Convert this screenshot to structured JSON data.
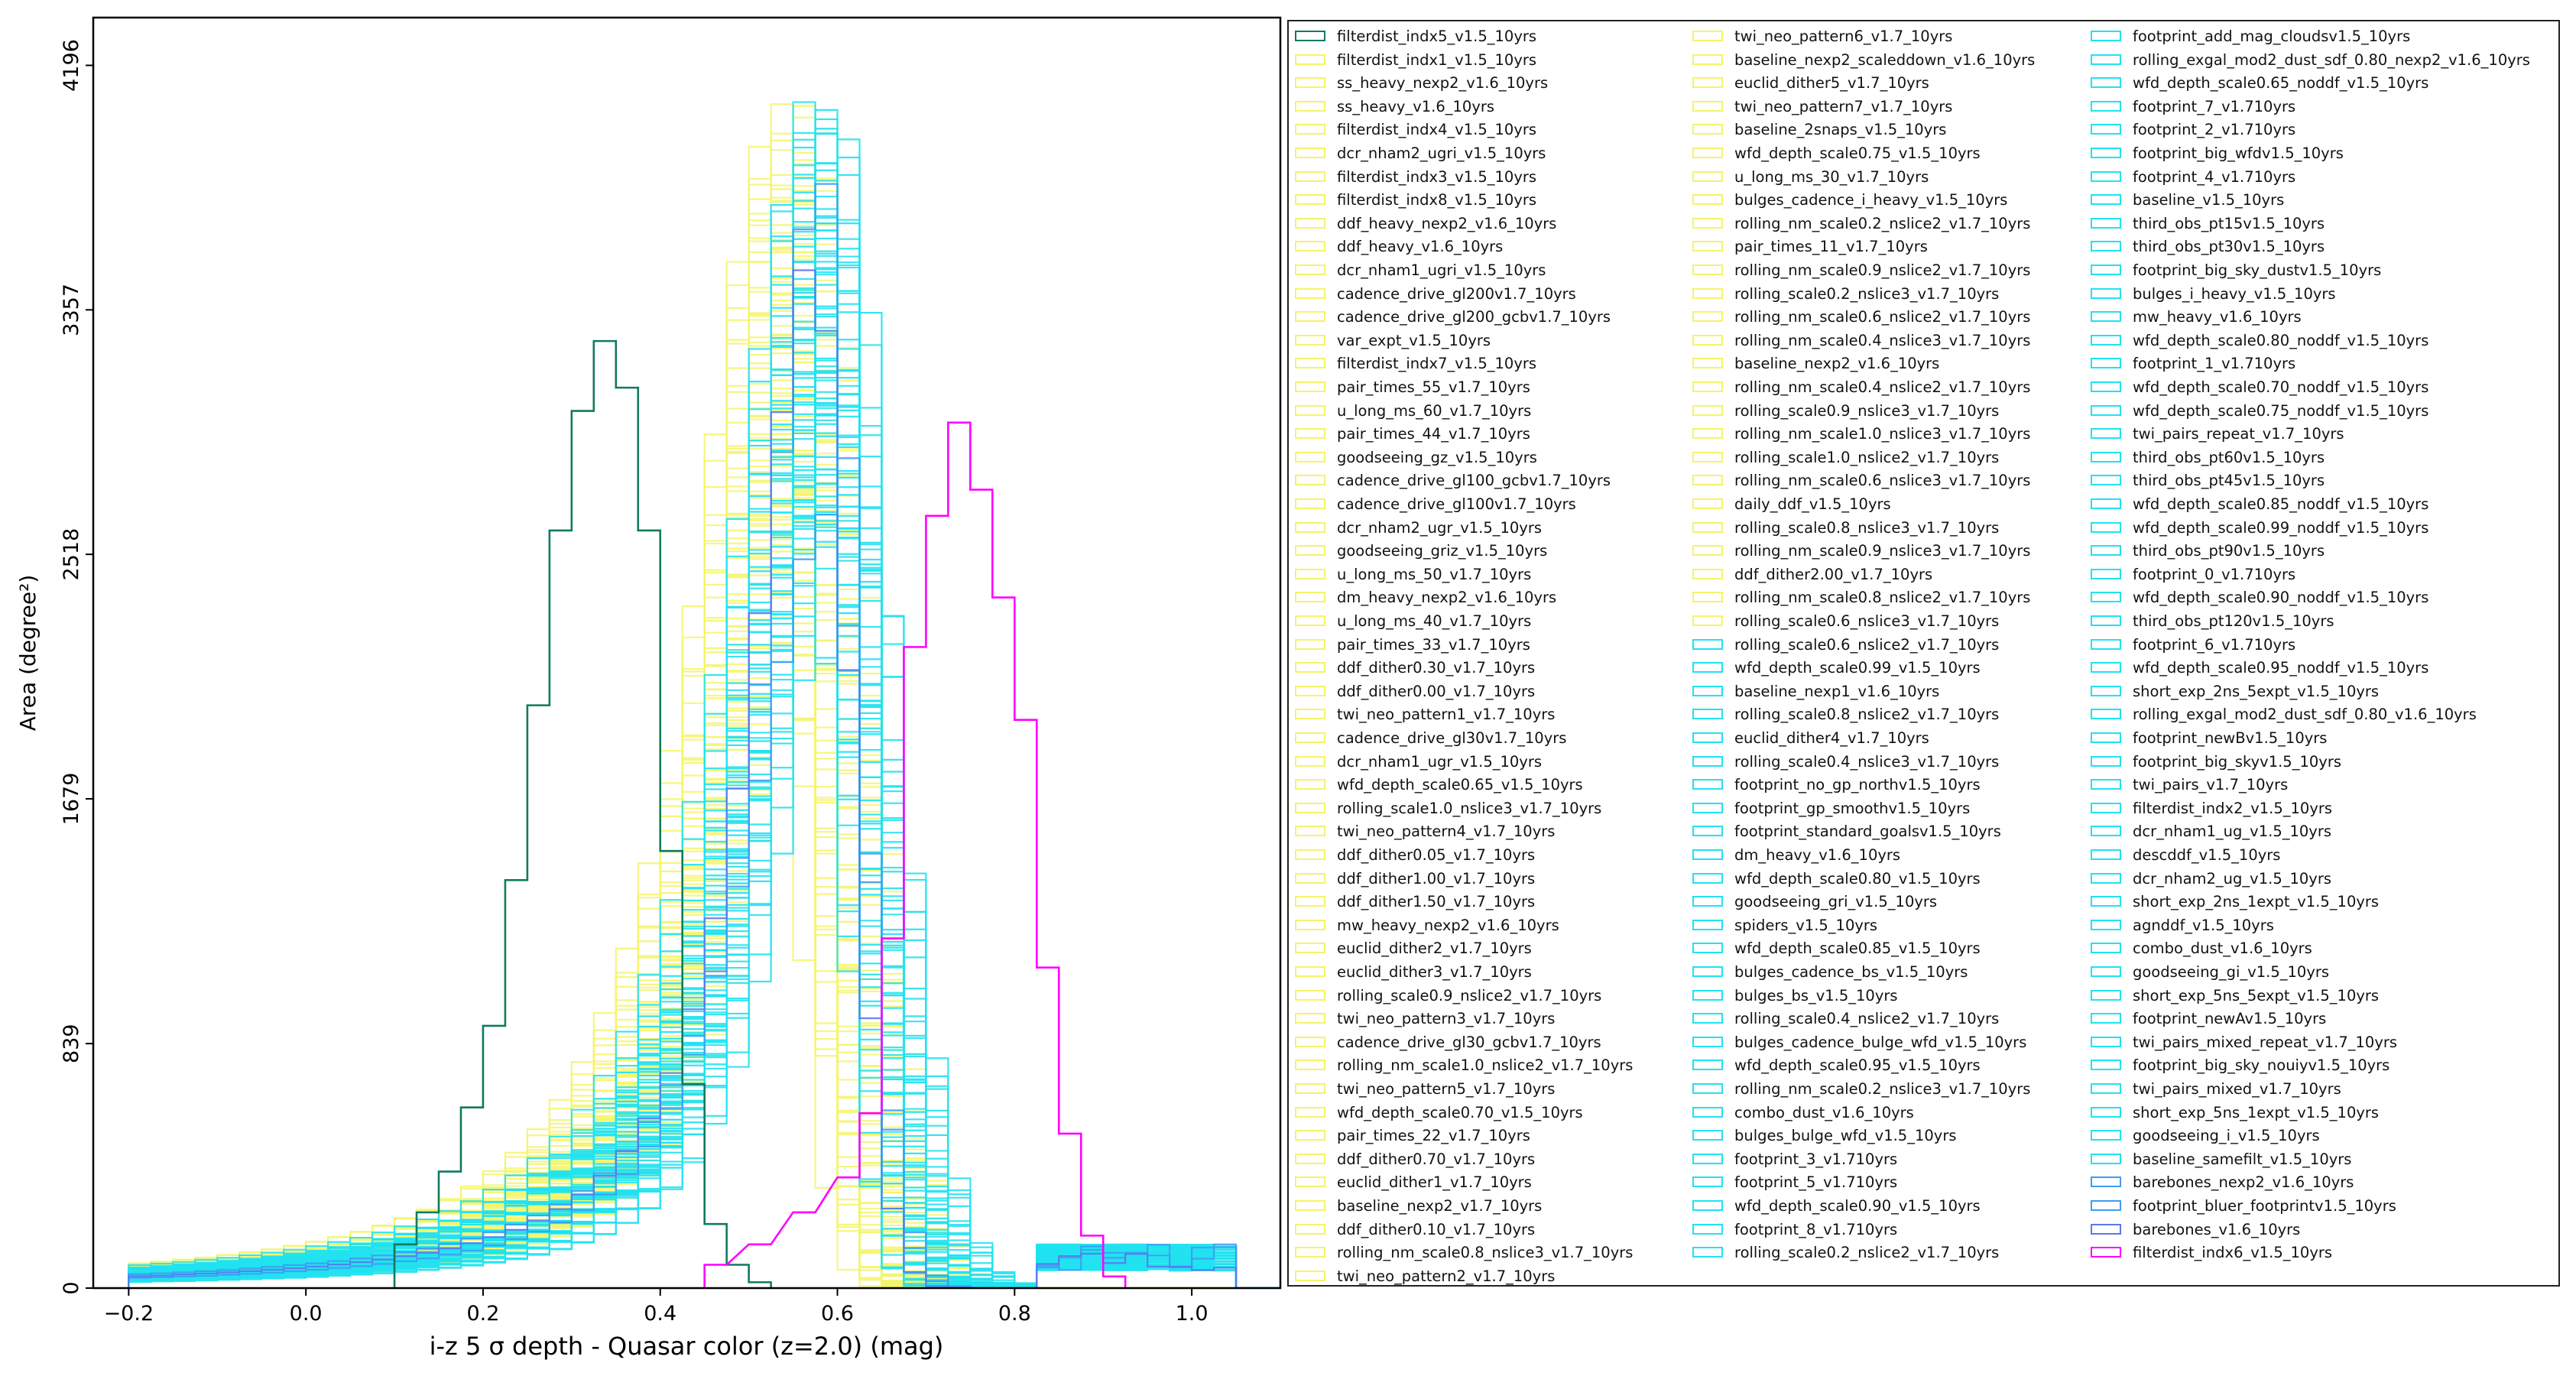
{
  "chart_data": {
    "type": "histogram",
    "xlabel": "i-z 5 σ depth - Quasar color (z=2.0) (mag)",
    "ylabel": "Area (degree²)",
    "xlim": [
      -0.24,
      1.1
    ],
    "ylim": [
      0,
      4360
    ],
    "xticks": [
      -0.2,
      0.0,
      0.2,
      0.4,
      0.6,
      0.8,
      1.0
    ],
    "xtick_labels": [
      "−0.2",
      "0.0",
      "0.2",
      "0.4",
      "0.6",
      "0.8",
      "1.0"
    ],
    "yticks": [
      0,
      839,
      1679,
      2518,
      3357,
      4196
    ],
    "ytick_labels": [
      "0",
      "839",
      "1679",
      "2518",
      "3357",
      "4196"
    ],
    "grid": false,
    "legend_placement": "outside-right",
    "highlighted_series": [
      {
        "name": "filterdist_indx5_v1.5_10yrs",
        "color": "#117a60",
        "x": [
          0.1,
          0.125,
          0.15,
          0.175,
          0.2,
          0.225,
          0.25,
          0.275,
          0.3,
          0.325,
          0.35,
          0.375,
          0.4,
          0.425,
          0.45,
          0.475,
          0.5
        ],
        "y": [
          150,
          260,
          400,
          620,
          900,
          1400,
          2000,
          2600,
          3010,
          3250,
          3090,
          2600,
          1500,
          700,
          220,
          80,
          20
        ]
      },
      {
        "name": "filterdist_indx6_v1.5_10yrs",
        "color": "#ff00ff",
        "x": [
          0.45,
          0.5,
          0.55,
          0.6,
          0.625,
          0.65,
          0.675,
          0.7,
          0.725,
          0.75,
          0.775,
          0.8,
          0.825,
          0.85,
          0.875,
          0.9
        ],
        "y": [
          80,
          150,
          260,
          380,
          600,
          1200,
          2200,
          2650,
          2970,
          2740,
          2370,
          1950,
          1100,
          530,
          180,
          40
        ]
      }
    ],
    "legend": {
      "columns": [
        [
          {
            "label": "filterdist_indx5_v1.5_10yrs",
            "color": "#117a60"
          },
          {
            "label": "filterdist_indx1_v1.5_10yrs",
            "color": "#f4f46a"
          },
          {
            "label": "ss_heavy_nexp2_v1.6_10yrs",
            "color": "#f4f46a"
          },
          {
            "label": "ss_heavy_v1.6_10yrs",
            "color": "#f4f46a"
          },
          {
            "label": "filterdist_indx4_v1.5_10yrs",
            "color": "#f4f46a"
          },
          {
            "label": "dcr_nham2_ugri_v1.5_10yrs",
            "color": "#f4f46a"
          },
          {
            "label": "filterdist_indx3_v1.5_10yrs",
            "color": "#f4f46a"
          },
          {
            "label": "filterdist_indx8_v1.5_10yrs",
            "color": "#f4f46a"
          },
          {
            "label": "ddf_heavy_nexp2_v1.6_10yrs",
            "color": "#f4f46a"
          },
          {
            "label": "ddf_heavy_v1.6_10yrs",
            "color": "#f4f46a"
          },
          {
            "label": "dcr_nham1_ugri_v1.5_10yrs",
            "color": "#f4f46a"
          },
          {
            "label": "cadence_drive_gl200v1.7_10yrs",
            "color": "#f4f46a"
          },
          {
            "label": "cadence_drive_gl200_gcbv1.7_10yrs",
            "color": "#f4f46a"
          },
          {
            "label": "var_expt_v1.5_10yrs",
            "color": "#f4f46a"
          },
          {
            "label": "filterdist_indx7_v1.5_10yrs",
            "color": "#f4f46a"
          },
          {
            "label": "pair_times_55_v1.7_10yrs",
            "color": "#f4f46a"
          },
          {
            "label": "u_long_ms_60_v1.7_10yrs",
            "color": "#f4f46a"
          },
          {
            "label": "pair_times_44_v1.7_10yrs",
            "color": "#f4f46a"
          },
          {
            "label": "goodseeing_gz_v1.5_10yrs",
            "color": "#f4f46a"
          },
          {
            "label": "cadence_drive_gl100_gcbv1.7_10yrs",
            "color": "#f4f46a"
          },
          {
            "label": "cadence_drive_gl100v1.7_10yrs",
            "color": "#f4f46a"
          },
          {
            "label": "dcr_nham2_ugr_v1.5_10yrs",
            "color": "#f4f46a"
          },
          {
            "label": "goodseeing_griz_v1.5_10yrs",
            "color": "#f4f46a"
          },
          {
            "label": "u_long_ms_50_v1.7_10yrs",
            "color": "#f4f46a"
          },
          {
            "label": "dm_heavy_nexp2_v1.6_10yrs",
            "color": "#f4f46a"
          },
          {
            "label": "u_long_ms_40_v1.7_10yrs",
            "color": "#f4f46a"
          },
          {
            "label": "pair_times_33_v1.7_10yrs",
            "color": "#f4f46a"
          },
          {
            "label": "ddf_dither0.30_v1.7_10yrs",
            "color": "#f4f46a"
          },
          {
            "label": "ddf_dither0.00_v1.7_10yrs",
            "color": "#f4f46a"
          },
          {
            "label": "twi_neo_pattern1_v1.7_10yrs",
            "color": "#f4f46a"
          },
          {
            "label": "cadence_drive_gl30v1.7_10yrs",
            "color": "#f4f46a"
          },
          {
            "label": "dcr_nham1_ugr_v1.5_10yrs",
            "color": "#f4f46a"
          },
          {
            "label": "wfd_depth_scale0.65_v1.5_10yrs",
            "color": "#f4f46a"
          },
          {
            "label": "rolling_scale1.0_nslice3_v1.7_10yrs",
            "color": "#f4f46a"
          },
          {
            "label": "twi_neo_pattern4_v1.7_10yrs",
            "color": "#f4f46a"
          },
          {
            "label": "ddf_dither0.05_v1.7_10yrs",
            "color": "#f4f46a"
          },
          {
            "label": "ddf_dither1.00_v1.7_10yrs",
            "color": "#f4f46a"
          },
          {
            "label": "ddf_dither1.50_v1.7_10yrs",
            "color": "#f4f46a"
          },
          {
            "label": "mw_heavy_nexp2_v1.6_10yrs",
            "color": "#f4f46a"
          },
          {
            "label": "euclid_dither2_v1.7_10yrs",
            "color": "#f4f46a"
          },
          {
            "label": "euclid_dither3_v1.7_10yrs",
            "color": "#f4f46a"
          },
          {
            "label": "rolling_scale0.9_nslice2_v1.7_10yrs",
            "color": "#f4f46a"
          },
          {
            "label": "twi_neo_pattern3_v1.7_10yrs",
            "color": "#f4f46a"
          },
          {
            "label": "cadence_drive_gl30_gcbv1.7_10yrs",
            "color": "#f4f46a"
          },
          {
            "label": "rolling_nm_scale1.0_nslice2_v1.7_10yrs",
            "color": "#f4f46a"
          },
          {
            "label": "twi_neo_pattern5_v1.7_10yrs",
            "color": "#f4f46a"
          },
          {
            "label": "wfd_depth_scale0.70_v1.5_10yrs",
            "color": "#f4f46a"
          },
          {
            "label": "pair_times_22_v1.7_10yrs",
            "color": "#f4f46a"
          },
          {
            "label": "ddf_dither0.70_v1.7_10yrs",
            "color": "#f4f46a"
          },
          {
            "label": "euclid_dither1_v1.7_10yrs",
            "color": "#f4f46a"
          },
          {
            "label": "baseline_nexp2_v1.7_10yrs",
            "color": "#f4f46a"
          },
          {
            "label": "ddf_dither0.10_v1.7_10yrs",
            "color": "#f4f46a"
          },
          {
            "label": "rolling_nm_scale0.8_nslice3_v1.7_10yrs",
            "color": "#f4f46a"
          },
          {
            "label": "twi_neo_pattern2_v1.7_10yrs",
            "color": "#f4f46a"
          }
        ],
        [
          {
            "label": "twi_neo_pattern6_v1.7_10yrs",
            "color": "#f4f46a"
          },
          {
            "label": "baseline_nexp2_scaleddown_v1.6_10yrs",
            "color": "#f4f46a"
          },
          {
            "label": "euclid_dither5_v1.7_10yrs",
            "color": "#f4f46a"
          },
          {
            "label": "twi_neo_pattern7_v1.7_10yrs",
            "color": "#f4f46a"
          },
          {
            "label": "baseline_2snaps_v1.5_10yrs",
            "color": "#f4f46a"
          },
          {
            "label": "wfd_depth_scale0.75_v1.5_10yrs",
            "color": "#f4f46a"
          },
          {
            "label": "u_long_ms_30_v1.7_10yrs",
            "color": "#f4f46a"
          },
          {
            "label": "bulges_cadence_i_heavy_v1.5_10yrs",
            "color": "#f4f46a"
          },
          {
            "label": "rolling_nm_scale0.2_nslice2_v1.7_10yrs",
            "color": "#f4f46a"
          },
          {
            "label": "pair_times_11_v1.7_10yrs",
            "color": "#f4f46a"
          },
          {
            "label": "rolling_nm_scale0.9_nslice2_v1.7_10yrs",
            "color": "#f4f46a"
          },
          {
            "label": "rolling_scale0.2_nslice3_v1.7_10yrs",
            "color": "#f4f46a"
          },
          {
            "label": "rolling_nm_scale0.6_nslice2_v1.7_10yrs",
            "color": "#f4f46a"
          },
          {
            "label": "rolling_nm_scale0.4_nslice3_v1.7_10yrs",
            "color": "#f4f46a"
          },
          {
            "label": "baseline_nexp2_v1.6_10yrs",
            "color": "#f4f46a"
          },
          {
            "label": "rolling_nm_scale0.4_nslice2_v1.7_10yrs",
            "color": "#f4f46a"
          },
          {
            "label": "rolling_scale0.9_nslice3_v1.7_10yrs",
            "color": "#f4f46a"
          },
          {
            "label": "rolling_nm_scale1.0_nslice3_v1.7_10yrs",
            "color": "#f4f46a"
          },
          {
            "label": "rolling_scale1.0_nslice2_v1.7_10yrs",
            "color": "#f4f46a"
          },
          {
            "label": "rolling_nm_scale0.6_nslice3_v1.7_10yrs",
            "color": "#f4f46a"
          },
          {
            "label": "daily_ddf_v1.5_10yrs",
            "color": "#f4f46a"
          },
          {
            "label": "rolling_scale0.8_nslice3_v1.7_10yrs",
            "color": "#f4f46a"
          },
          {
            "label": "rolling_nm_scale0.9_nslice3_v1.7_10yrs",
            "color": "#f4f46a"
          },
          {
            "label": "ddf_dither2.00_v1.7_10yrs",
            "color": "#f4f46a"
          },
          {
            "label": "rolling_nm_scale0.8_nslice2_v1.7_10yrs",
            "color": "#f4f46a"
          },
          {
            "label": "rolling_scale0.6_nslice3_v1.7_10yrs",
            "color": "#f4f46a"
          },
          {
            "label": "rolling_scale0.6_nslice2_v1.7_10yrs",
            "color": "#21e2f0"
          },
          {
            "label": "wfd_depth_scale0.99_v1.5_10yrs",
            "color": "#21e2f0"
          },
          {
            "label": "baseline_nexp1_v1.6_10yrs",
            "color": "#21e2f0"
          },
          {
            "label": "rolling_scale0.8_nslice2_v1.7_10yrs",
            "color": "#21e2f0"
          },
          {
            "label": "euclid_dither4_v1.7_10yrs",
            "color": "#21e2f0"
          },
          {
            "label": "rolling_scale0.4_nslice3_v1.7_10yrs",
            "color": "#21e2f0"
          },
          {
            "label": "footprint_no_gp_northv1.5_10yrs",
            "color": "#21e2f0"
          },
          {
            "label": "footprint_gp_smoothv1.5_10yrs",
            "color": "#21e2f0"
          },
          {
            "label": "footprint_standard_goalsv1.5_10yrs",
            "color": "#21e2f0"
          },
          {
            "label": "dm_heavy_v1.6_10yrs",
            "color": "#21e2f0"
          },
          {
            "label": "wfd_depth_scale0.80_v1.5_10yrs",
            "color": "#21e2f0"
          },
          {
            "label": "goodseeing_gri_v1.5_10yrs",
            "color": "#21e2f0"
          },
          {
            "label": "spiders_v1.5_10yrs",
            "color": "#21e2f0"
          },
          {
            "label": "wfd_depth_scale0.85_v1.5_10yrs",
            "color": "#21e2f0"
          },
          {
            "label": "bulges_cadence_bs_v1.5_10yrs",
            "color": "#21e2f0"
          },
          {
            "label": "bulges_bs_v1.5_10yrs",
            "color": "#21e2f0"
          },
          {
            "label": "rolling_scale0.4_nslice2_v1.7_10yrs",
            "color": "#21e2f0"
          },
          {
            "label": "bulges_cadence_bulge_wfd_v1.5_10yrs",
            "color": "#21e2f0"
          },
          {
            "label": "wfd_depth_scale0.95_v1.5_10yrs",
            "color": "#21e2f0"
          },
          {
            "label": "rolling_nm_scale0.2_nslice3_v1.7_10yrs",
            "color": "#21e2f0"
          },
          {
            "label": "combo_dust_v1.6_10yrs",
            "color": "#21e2f0"
          },
          {
            "label": "bulges_bulge_wfd_v1.5_10yrs",
            "color": "#21e2f0"
          },
          {
            "label": "footprint_3_v1.710yrs",
            "color": "#21e2f0"
          },
          {
            "label": "footprint_5_v1.710yrs",
            "color": "#21e2f0"
          },
          {
            "label": "wfd_depth_scale0.90_v1.5_10yrs",
            "color": "#21e2f0"
          },
          {
            "label": "footprint_8_v1.710yrs",
            "color": "#21e2f0"
          },
          {
            "label": "rolling_scale0.2_nslice2_v1.7_10yrs",
            "color": "#21e2f0"
          }
        ],
        [
          {
            "label": "footprint_add_mag_cloudsv1.5_10yrs",
            "color": "#21e2f0"
          },
          {
            "label": "rolling_exgal_mod2_dust_sdf_0.80_nexp2_v1.6_10yrs",
            "color": "#21e2f0"
          },
          {
            "label": "wfd_depth_scale0.65_noddf_v1.5_10yrs",
            "color": "#21e2f0"
          },
          {
            "label": "footprint_7_v1.710yrs",
            "color": "#21e2f0"
          },
          {
            "label": "footprint_2_v1.710yrs",
            "color": "#21e2f0"
          },
          {
            "label": "footprint_big_wfdv1.5_10yrs",
            "color": "#21e2f0"
          },
          {
            "label": "footprint_4_v1.710yrs",
            "color": "#21e2f0"
          },
          {
            "label": "baseline_v1.5_10yrs",
            "color": "#21e2f0"
          },
          {
            "label": "third_obs_pt15v1.5_10yrs",
            "color": "#21e2f0"
          },
          {
            "label": "third_obs_pt30v1.5_10yrs",
            "color": "#21e2f0"
          },
          {
            "label": "footprint_big_sky_dustv1.5_10yrs",
            "color": "#21e2f0"
          },
          {
            "label": "bulges_i_heavy_v1.5_10yrs",
            "color": "#21e2f0"
          },
          {
            "label": "mw_heavy_v1.6_10yrs",
            "color": "#21e2f0"
          },
          {
            "label": "wfd_depth_scale0.80_noddf_v1.5_10yrs",
            "color": "#21e2f0"
          },
          {
            "label": "footprint_1_v1.710yrs",
            "color": "#21e2f0"
          },
          {
            "label": "wfd_depth_scale0.70_noddf_v1.5_10yrs",
            "color": "#21e2f0"
          },
          {
            "label": "wfd_depth_scale0.75_noddf_v1.5_10yrs",
            "color": "#21e2f0"
          },
          {
            "label": "twi_pairs_repeat_v1.7_10yrs",
            "color": "#21e2f0"
          },
          {
            "label": "third_obs_pt60v1.5_10yrs",
            "color": "#21e2f0"
          },
          {
            "label": "third_obs_pt45v1.5_10yrs",
            "color": "#21e2f0"
          },
          {
            "label": "wfd_depth_scale0.85_noddf_v1.5_10yrs",
            "color": "#21e2f0"
          },
          {
            "label": "wfd_depth_scale0.99_noddf_v1.5_10yrs",
            "color": "#21e2f0"
          },
          {
            "label": "third_obs_pt90v1.5_10yrs",
            "color": "#21e2f0"
          },
          {
            "label": "footprint_0_v1.710yrs",
            "color": "#21e2f0"
          },
          {
            "label": "wfd_depth_scale0.90_noddf_v1.5_10yrs",
            "color": "#21e2f0"
          },
          {
            "label": "third_obs_pt120v1.5_10yrs",
            "color": "#21e2f0"
          },
          {
            "label": "footprint_6_v1.710yrs",
            "color": "#21e2f0"
          },
          {
            "label": "wfd_depth_scale0.95_noddf_v1.5_10yrs",
            "color": "#21e2f0"
          },
          {
            "label": "short_exp_2ns_5expt_v1.5_10yrs",
            "color": "#21e2f0"
          },
          {
            "label": "rolling_exgal_mod2_dust_sdf_0.80_v1.6_10yrs",
            "color": "#21e2f0"
          },
          {
            "label": "footprint_newBv1.5_10yrs",
            "color": "#21e2f0"
          },
          {
            "label": "footprint_big_skyv1.5_10yrs",
            "color": "#21e2f0"
          },
          {
            "label": "twi_pairs_v1.7_10yrs",
            "color": "#21e2f0"
          },
          {
            "label": "filterdist_indx2_v1.5_10yrs",
            "color": "#21e2f0"
          },
          {
            "label": "dcr_nham1_ug_v1.5_10yrs",
            "color": "#21e2f0"
          },
          {
            "label": "descddf_v1.5_10yrs",
            "color": "#21e2f0"
          },
          {
            "label": "dcr_nham2_ug_v1.5_10yrs",
            "color": "#21e2f0"
          },
          {
            "label": "short_exp_2ns_1expt_v1.5_10yrs",
            "color": "#21e2f0"
          },
          {
            "label": "agnddf_v1.5_10yrs",
            "color": "#21e2f0"
          },
          {
            "label": "combo_dust_v1.6_10yrs",
            "color": "#21e2f0"
          },
          {
            "label": "goodseeing_gi_v1.5_10yrs",
            "color": "#21e2f0"
          },
          {
            "label": "short_exp_5ns_5expt_v1.5_10yrs",
            "color": "#21e2f0"
          },
          {
            "label": "footprint_newAv1.5_10yrs",
            "color": "#21e2f0"
          },
          {
            "label": "twi_pairs_mixed_repeat_v1.7_10yrs",
            "color": "#21e2f0"
          },
          {
            "label": "footprint_big_sky_nouiyv1.5_10yrs",
            "color": "#21e2f0"
          },
          {
            "label": "twi_pairs_mixed_v1.7_10yrs",
            "color": "#21e2f0"
          },
          {
            "label": "short_exp_5ns_1expt_v1.5_10yrs",
            "color": "#21e2f0"
          },
          {
            "label": "goodseeing_i_v1.5_10yrs",
            "color": "#21e2f0"
          },
          {
            "label": "baseline_samefilt_v1.5_10yrs",
            "color": "#21e2f0"
          },
          {
            "label": "barebones_nexp2_v1.6_10yrs",
            "color": "#3f9cf2"
          },
          {
            "label": "footprint_bluer_footprintv1.5_10yrs",
            "color": "#3f9cf2"
          },
          {
            "label": "barebones_v1.6_10yrs",
            "color": "#5b78ee"
          },
          {
            "label": "filterdist_indx6_v1.5_10yrs",
            "color": "#ff00ff"
          }
        ]
      ]
    }
  }
}
